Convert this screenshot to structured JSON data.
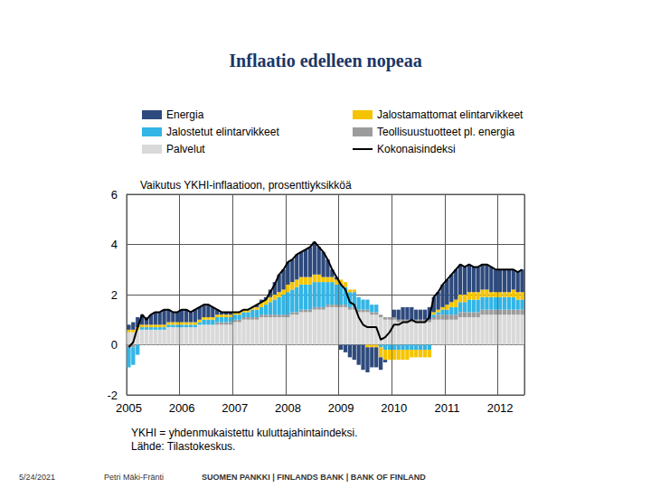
{
  "page": {
    "title": "Inflaatio edelleen nopeaa",
    "date": "5/24/2021",
    "author": "Petri Mäki-Fränti",
    "footer": "SUOMEN PANKKI | FINLANDS BANK | BANK OF FINLAND"
  },
  "chart_data": {
    "type": "bar",
    "subtitle": "Vaikutus YKHI-inflaatioon, prosenttiyksikköä",
    "annotations": [
      "YKHI = yhdenmukaistettu kuluttajahintaindeksi.",
      "Lähde: Tilastokeskus."
    ],
    "stacked": true,
    "grid": true,
    "legend": "top",
    "ylim": [
      -2,
      6
    ],
    "yticks": [
      -2,
      0,
      2,
      4,
      6
    ],
    "categories": [
      "2005",
      null,
      null,
      null,
      null,
      null,
      null,
      null,
      null,
      null,
      null,
      null,
      "2006",
      null,
      null,
      null,
      null,
      null,
      null,
      null,
      null,
      null,
      null,
      null,
      "2007",
      null,
      null,
      null,
      null,
      null,
      null,
      null,
      null,
      null,
      null,
      null,
      "2008",
      null,
      null,
      null,
      null,
      null,
      null,
      null,
      null,
      null,
      null,
      null,
      "2009",
      null,
      null,
      null,
      null,
      null,
      null,
      null,
      null,
      null,
      null,
      null,
      "2010",
      null,
      null,
      null,
      null,
      null,
      null,
      null,
      null,
      null,
      null,
      null,
      "2011",
      null,
      null,
      null,
      null,
      null,
      null,
      null,
      null,
      null,
      null,
      null,
      "2012",
      null,
      null,
      null,
      null,
      null
    ],
    "series": [
      {
        "name": "Energia",
        "color": "#2e4a7d",
        "type": "bar",
        "values": [
          0.2,
          0.3,
          0.4,
          0.4,
          0.3,
          0.4,
          0.5,
          0.5,
          0.6,
          0.5,
          0.4,
          0.4,
          0.5,
          0.5,
          0.4,
          0.5,
          0.5,
          0.5,
          0.5,
          0.4,
          0.2,
          0.1,
          0.1,
          0.1,
          0.0,
          0.0,
          0.0,
          0.0,
          0.0,
          0.1,
          0.1,
          0.1,
          0.3,
          0.5,
          0.7,
          0.8,
          0.9,
          0.9,
          1.0,
          1.0,
          1.1,
          1.2,
          1.3,
          1.1,
          1.0,
          0.7,
          0.3,
          0.1,
          -0.2,
          -0.3,
          -0.5,
          -0.6,
          -0.8,
          -1.0,
          -1.0,
          -0.8,
          -0.8,
          -0.5,
          -0.1,
          0.0,
          0.3,
          0.4,
          0.5,
          0.5,
          0.5,
          0.4,
          0.4,
          0.4,
          0.5,
          0.6,
          0.7,
          0.9,
          1.0,
          1.1,
          1.2,
          1.2,
          1.1,
          1.1,
          1.0,
          1.0,
          1.0,
          1.0,
          1.0,
          0.9,
          0.9,
          0.9,
          0.9,
          0.8,
          0.8,
          0.9
        ]
      },
      {
        "name": "Jalostamattomat elintarvikkeet",
        "color": "#f5c400",
        "type": "bar",
        "values": [
          0.1,
          0.1,
          0.1,
          0.1,
          0.1,
          0.1,
          0.1,
          0.1,
          0.1,
          0.1,
          0.1,
          0.1,
          0.1,
          0.1,
          0.1,
          0.1,
          0.1,
          0.1,
          0.1,
          0.1,
          0.1,
          0.1,
          0.1,
          0.1,
          0.1,
          0.1,
          0.1,
          0.1,
          0.1,
          0.1,
          0.2,
          0.2,
          0.2,
          0.2,
          0.2,
          0.2,
          0.3,
          0.3,
          0.3,
          0.3,
          0.3,
          0.3,
          0.3,
          0.3,
          0.2,
          0.2,
          0.2,
          0.2,
          0.2,
          0.2,
          0.1,
          0.1,
          0.0,
          0.0,
          -0.1,
          -0.1,
          -0.1,
          -0.4,
          -0.4,
          -0.4,
          -0.4,
          -0.4,
          -0.4,
          -0.4,
          -0.3,
          -0.3,
          -0.3,
          -0.3,
          -0.3,
          0.1,
          0.1,
          0.1,
          0.2,
          0.2,
          0.3,
          0.3,
          0.3,
          0.3,
          0.3,
          0.3,
          0.3,
          0.3,
          0.2,
          0.2,
          0.2,
          0.2,
          0.2,
          0.3,
          0.3,
          0.3
        ]
      },
      {
        "name": "Jalostetut elintarvikkeet",
        "color": "#33b5e5",
        "type": "bar",
        "values": [
          -0.8,
          -0.7,
          -0.4,
          0.1,
          0.1,
          0.1,
          0.1,
          0.1,
          0.1,
          0.1,
          0.1,
          0.1,
          0.1,
          0.1,
          0.1,
          0.1,
          0.1,
          0.2,
          0.2,
          0.2,
          0.2,
          0.2,
          0.2,
          0.2,
          0.2,
          0.2,
          0.2,
          0.2,
          0.3,
          0.3,
          0.3,
          0.4,
          0.5,
          0.6,
          0.7,
          0.8,
          0.9,
          0.9,
          1.0,
          1.0,
          1.0,
          1.0,
          1.0,
          1.0,
          1.0,
          0.9,
          0.9,
          0.8,
          0.8,
          0.7,
          0.6,
          0.6,
          0.5,
          0.4,
          0.4,
          0.3,
          0.3,
          -0.1,
          -0.2,
          -0.2,
          -0.2,
          -0.2,
          -0.2,
          -0.2,
          -0.2,
          -0.2,
          -0.2,
          -0.2,
          -0.2,
          0.1,
          0.1,
          0.2,
          0.2,
          0.3,
          0.3,
          0.4,
          0.4,
          0.5,
          0.5,
          0.5,
          0.5,
          0.5,
          0.5,
          0.5,
          0.5,
          0.5,
          0.5,
          0.5,
          0.4,
          0.4
        ]
      },
      {
        "name": "Teollisuustuotteet pl. energia",
        "color": "#9c9c9c",
        "type": "bar",
        "values": [
          -0.1,
          -0.1,
          0,
          0,
          0,
          0,
          0,
          0,
          0,
          0,
          0,
          0,
          0,
          0,
          0,
          0,
          0,
          0,
          0,
          0,
          0.1,
          0.1,
          0.1,
          0.1,
          0.1,
          0.1,
          0.1,
          0.1,
          0.1,
          0.1,
          0.1,
          0.1,
          0.1,
          0.1,
          0.1,
          0.1,
          0.1,
          0.1,
          0.1,
          0.1,
          0.1,
          0.1,
          0.1,
          0.1,
          0.1,
          0.1,
          0.1,
          0.1,
          0.1,
          0.1,
          0.1,
          0.1,
          0.1,
          0.1,
          0.1,
          0.1,
          0.1,
          0.1,
          0.1,
          0.1,
          0.1,
          0.1,
          0.1,
          0.1,
          0.1,
          0.1,
          0.1,
          0.1,
          0.1,
          0.1,
          0.2,
          0.2,
          0.2,
          0.2,
          0.2,
          0.2,
          0.2,
          0.2,
          0.2,
          0.2,
          0.2,
          0.2,
          0.2,
          0.2,
          0.2,
          0.2,
          0.2,
          0.2,
          0.2,
          0.2
        ]
      },
      {
        "name": "Palvelut",
        "color": "#d9d9d9",
        "type": "bar",
        "values": [
          0.5,
          0.5,
          0.6,
          0.6,
          0.6,
          0.6,
          0.6,
          0.6,
          0.6,
          0.7,
          0.7,
          0.7,
          0.7,
          0.7,
          0.7,
          0.7,
          0.8,
          0.8,
          0.8,
          0.8,
          0.8,
          0.8,
          0.8,
          0.8,
          0.9,
          0.9,
          1.0,
          1.0,
          1.0,
          1.0,
          1.1,
          1.1,
          1.1,
          1.1,
          1.1,
          1.1,
          1.1,
          1.2,
          1.2,
          1.3,
          1.3,
          1.3,
          1.4,
          1.4,
          1.4,
          1.5,
          1.5,
          1.5,
          1.5,
          1.5,
          1.4,
          1.4,
          1.3,
          1.3,
          1.3,
          1.2,
          1.2,
          1.1,
          1.0,
          1.0,
          1.0,
          0.9,
          0.9,
          0.9,
          0.9,
          0.9,
          0.9,
          0.9,
          0.9,
          1.0,
          1.0,
          1.0,
          1.0,
          1.0,
          1.0,
          1.1,
          1.1,
          1.1,
          1.1,
          1.1,
          1.2,
          1.2,
          1.2,
          1.2,
          1.2,
          1.2,
          1.2,
          1.2,
          1.2,
          1.2
        ]
      },
      {
        "name": "Kokonaisindeksi",
        "color": "#000000",
        "type": "line",
        "values": [
          -0.1,
          0.1,
          0.7,
          1.2,
          1.0,
          1.2,
          1.3,
          1.3,
          1.4,
          1.4,
          1.3,
          1.3,
          1.4,
          1.4,
          1.3,
          1.4,
          1.5,
          1.6,
          1.6,
          1.5,
          1.4,
          1.3,
          1.3,
          1.3,
          1.3,
          1.3,
          1.4,
          1.4,
          1.5,
          1.6,
          1.7,
          1.8,
          2.1,
          2.4,
          2.8,
          3.0,
          3.3,
          3.4,
          3.6,
          3.7,
          3.8,
          3.9,
          4.1,
          3.9,
          3.7,
          3.4,
          3.0,
          2.7,
          2.4,
          2.2,
          1.7,
          1.6,
          1.1,
          0.8,
          0.7,
          0.7,
          0.7,
          0.2,
          0.3,
          0.5,
          0.8,
          0.8,
          0.9,
          0.9,
          1.0,
          0.9,
          0.9,
          0.9,
          1.1,
          1.9,
          2.1,
          2.4,
          2.6,
          2.8,
          3.0,
          3.2,
          3.1,
          3.2,
          3.1,
          3.1,
          3.2,
          3.2,
          3.1,
          3.0,
          3.0,
          3.0,
          3.0,
          3.0,
          2.9,
          3.0
        ]
      }
    ]
  }
}
